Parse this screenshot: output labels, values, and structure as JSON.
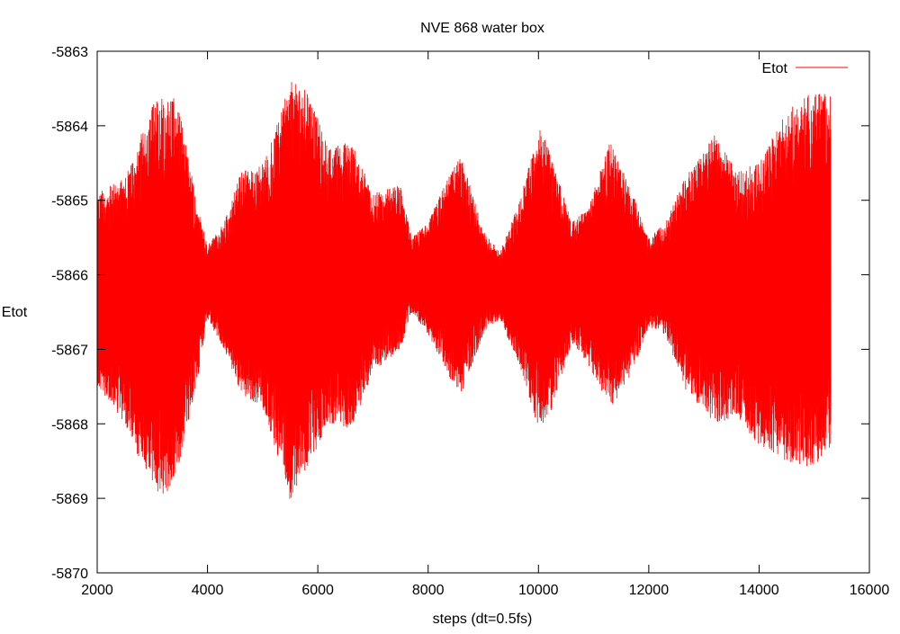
{
  "chart_data": {
    "type": "line",
    "title": "NVE 868 water box",
    "xlabel": "steps (dt=0.5fs)",
    "ylabel": "Etot",
    "xlim": [
      2000,
      16000
    ],
    "ylim": [
      -5870,
      -5863
    ],
    "xticks": [
      2000,
      4000,
      6000,
      8000,
      10000,
      12000,
      14000,
      16000
    ],
    "yticks": [
      -5863,
      -5864,
      -5865,
      -5866,
      -5867,
      -5868,
      -5869,
      -5870
    ],
    "grid": false,
    "legend": {
      "placement": "top-right",
      "entries": [
        "Etot"
      ]
    },
    "series": [
      {
        "name": "Etot",
        "color": "#ff0000",
        "note_envelope": "rapidly oscillating signal; upper/lower envelope estimated",
        "x": [
          2000,
          2500,
          3000,
          3300,
          3500,
          3800,
          4000,
          4300,
          4600,
          5000,
          5300,
          5500,
          5800,
          6200,
          6600,
          7000,
          7500,
          7700,
          8000,
          8400,
          8600,
          9000,
          9300,
          9700,
          10000,
          10200,
          10600,
          10900,
          11300,
          11600,
          12000,
          12300,
          12700,
          13200,
          13600,
          14000,
          14500,
          15000,
          15300
        ],
        "upper": [
          -5864.9,
          -5864.7,
          -5863.7,
          -5863.5,
          -5863.8,
          -5865.0,
          -5865.6,
          -5865.3,
          -5864.6,
          -5864.5,
          -5863.9,
          -5863.4,
          -5863.5,
          -5864.3,
          -5864.2,
          -5864.9,
          -5864.8,
          -5865.5,
          -5865.3,
          -5864.6,
          -5864.4,
          -5865.4,
          -5865.7,
          -5864.9,
          -5864.0,
          -5864.3,
          -5865.3,
          -5865.1,
          -5864.2,
          -5864.7,
          -5865.5,
          -5865.3,
          -5864.6,
          -5864.1,
          -5864.6,
          -5864.5,
          -5863.8,
          -5863.5,
          -5863.6
        ],
        "lower": [
          -5867.5,
          -5868.0,
          -5868.9,
          -5869.0,
          -5868.5,
          -5867.5,
          -5866.6,
          -5867.0,
          -5867.6,
          -5867.8,
          -5868.5,
          -5869.1,
          -5868.6,
          -5868.0,
          -5868.1,
          -5867.3,
          -5867.0,
          -5866.5,
          -5866.8,
          -5867.4,
          -5867.6,
          -5866.8,
          -5866.6,
          -5867.3,
          -5868.1,
          -5867.9,
          -5866.9,
          -5867.2,
          -5867.8,
          -5867.5,
          -5866.7,
          -5866.8,
          -5867.6,
          -5868.0,
          -5867.9,
          -5868.3,
          -5868.5,
          -5868.6,
          -5868.3
        ]
      }
    ]
  }
}
